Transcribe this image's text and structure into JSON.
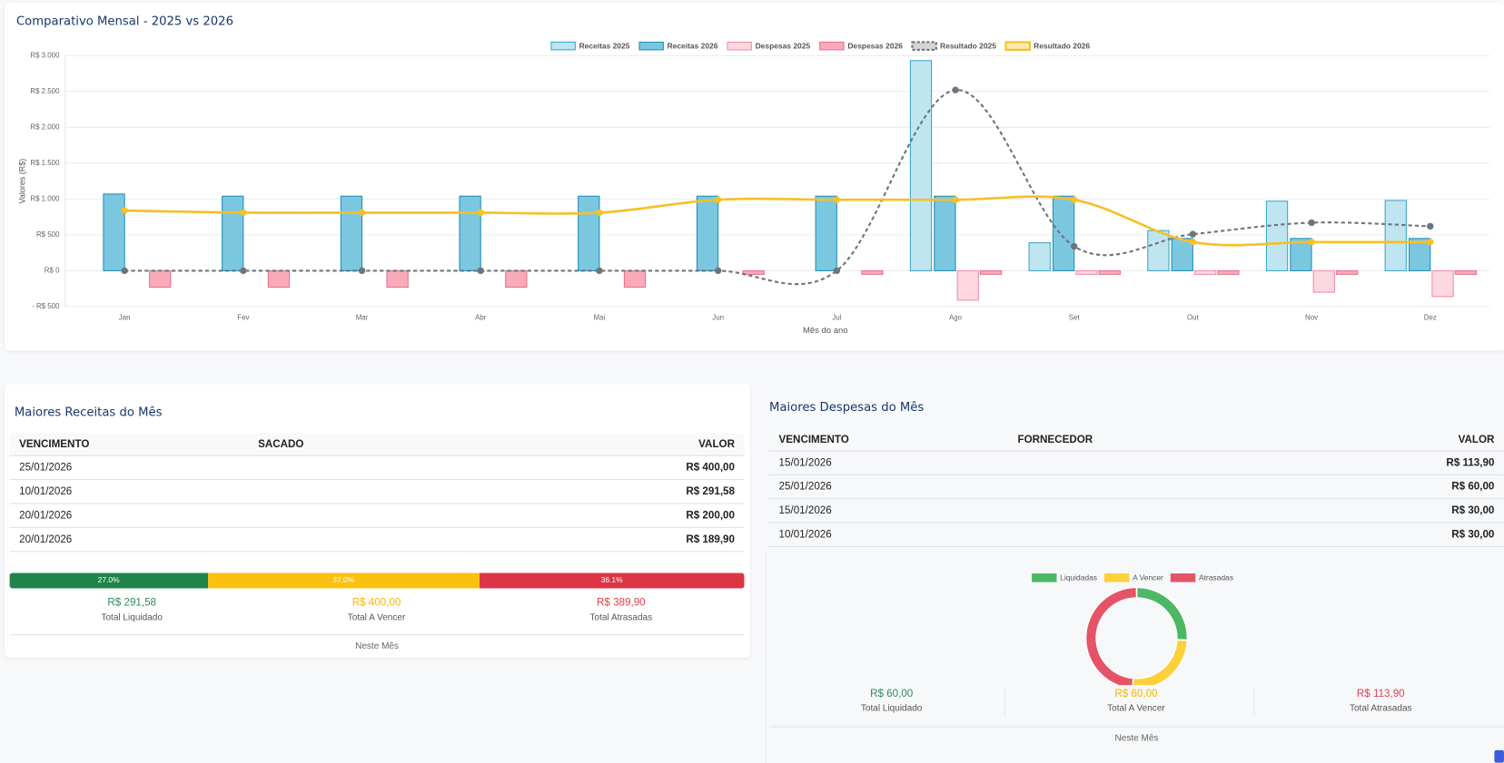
{
  "chart_data": [
    {
      "type": "bar",
      "title": "Comparativo Mensal - 2025 vs 2026",
      "x_label": "Mês do ano",
      "y_label": "Valores (R$)",
      "legend": "top",
      "grid": true,
      "categories": [
        "Jan",
        "Fev",
        "Mar",
        "Abr",
        "Mai",
        "Jun",
        "Jul",
        "Ago",
        "Set",
        "Out",
        "Nov",
        "Dez"
      ],
      "ylim": [
        -500,
        3000
      ],
      "yticks": [
        {
          "value": -500,
          "label": "- R$ 500"
        },
        {
          "value": 0,
          "label": "R$ 0"
        },
        {
          "value": 500,
          "label": "R$ 500"
        },
        {
          "value": 1000,
          "label": "R$ 1.000"
        },
        {
          "value": 1500,
          "label": "R$ 1.500"
        },
        {
          "value": 2000,
          "label": "R$ 2.000"
        },
        {
          "value": 2500,
          "label": "R$ 2.500"
        },
        {
          "value": 3000,
          "label": "R$ 3.000"
        }
      ],
      "series": [
        {
          "name": "Receitas 2025",
          "type": "bar",
          "color": "#bfe5f0",
          "stroke": "#3aa6cc",
          "values": [
            0,
            0,
            0,
            0,
            0,
            0,
            0,
            2930,
            390,
            560,
            970,
            980
          ]
        },
        {
          "name": "Receitas 2026",
          "type": "bar",
          "color": "#7cc7e0",
          "stroke": "#1d8fb8",
          "values": [
            1070,
            1040,
            1040,
            1040,
            1040,
            1040,
            1040,
            1040,
            1040,
            450,
            450,
            450
          ]
        },
        {
          "name": "Despesas 2025",
          "type": "bar",
          "color": "#fdd8e0",
          "stroke": "#f28ca3",
          "values": [
            0,
            0,
            0,
            0,
            0,
            0,
            0,
            -410,
            -50,
            -50,
            -300,
            -360
          ]
        },
        {
          "name": "Despesas 2026",
          "type": "bar",
          "color": "#f8aabb",
          "stroke": "#e8708c",
          "values": [
            -230,
            -230,
            -230,
            -230,
            -230,
            -50,
            -50,
            -50,
            -50,
            -50,
            -50,
            -50
          ]
        },
        {
          "name": "Resultado 2025",
          "type": "line",
          "dashed": true,
          "color": "#6c757d",
          "values": [
            0,
            0,
            0,
            0,
            0,
            0,
            0,
            2520,
            340,
            510,
            670,
            620
          ]
        },
        {
          "name": "Resultado 2026",
          "type": "line",
          "dashed": false,
          "color": "#f6c026",
          "values": [
            840,
            810,
            810,
            810,
            810,
            990,
            990,
            990,
            990,
            400,
            400,
            400
          ]
        }
      ]
    },
    {
      "type": "donut",
      "legend": "top",
      "categories": [
        "Liquidadas",
        "A Vencer",
        "Atrasadas"
      ],
      "values": [
        60,
        60,
        113.9
      ],
      "colors": [
        "#4cb866",
        "#fcd03a",
        "#e55466"
      ]
    }
  ],
  "receitas": {
    "title": "Maiores Receitas do Mês",
    "table": {
      "columns": [
        "VENCIMENTO",
        "SACADO",
        "VALOR"
      ],
      "rows": [
        [
          "25/01/2026",
          "",
          "R$ 400,00"
        ],
        [
          "10/01/2026",
          "",
          "R$ 291,58"
        ],
        [
          "20/01/2026",
          "",
          "R$ 200,00"
        ],
        [
          "20/01/2026",
          "",
          "R$ 189,90"
        ]
      ]
    },
    "progress": [
      {
        "value": 27.0,
        "label": "27.0%",
        "color": "#1e8449"
      },
      {
        "value": 37.0,
        "label": "37.0%",
        "color": "#fbc10f"
      },
      {
        "value": 36.1,
        "label": "36.1%",
        "color": "#dc3545"
      }
    ],
    "totals": [
      {
        "amount": "R$ 291,58",
        "label": "Total Liquidado",
        "color": "#2e8b57"
      },
      {
        "amount": "R$ 400,00",
        "label": "Total A Vencer",
        "color": "#f2b705"
      },
      {
        "amount": "R$ 389,90",
        "label": "Total Atrasadas",
        "color": "#e0404f"
      }
    ],
    "footer": "Neste Mês"
  },
  "despesas": {
    "title": "Maiores Despesas do Mês",
    "table": {
      "columns": [
        "VENCIMENTO",
        "FORNECEDOR",
        "VALOR"
      ],
      "rows": [
        [
          "15/01/2026",
          "",
          "R$ 113,90"
        ],
        [
          "25/01/2026",
          "",
          "R$ 60,00"
        ],
        [
          "15/01/2026",
          "",
          "R$ 30,00"
        ],
        [
          "10/01/2026",
          "",
          "R$ 30,00"
        ]
      ]
    },
    "totals": [
      {
        "amount": "R$ 60,00",
        "label": "Total Liquidado",
        "color": "#2e8b57"
      },
      {
        "amount": "R$ 60,00",
        "label": "Total A Vencer",
        "color": "#f2b705"
      },
      {
        "amount": "R$ 113,90",
        "label": "Total Atrasadas",
        "color": "#e0404f"
      }
    ],
    "footer": "Neste Mês"
  }
}
